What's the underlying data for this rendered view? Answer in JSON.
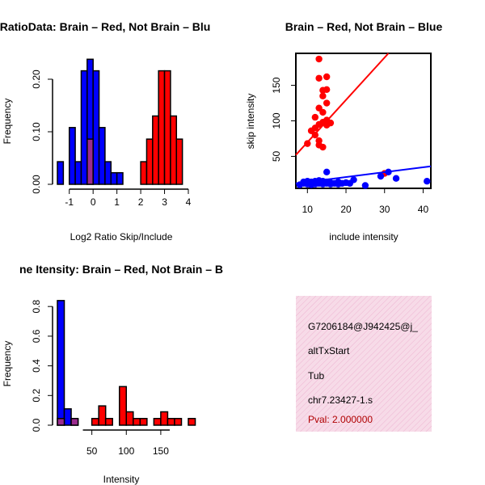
{
  "colors": {
    "brain": "#ff0000",
    "not_brain": "#0000ff",
    "overlap": "#9b2c8e",
    "panel_bg": "#f7dbe8",
    "pval": "#b00000",
    "axis": "#000000"
  },
  "chart_data": [
    {
      "type": "bar",
      "title": "RatioData: Brain – Red, Not Brain – Blu",
      "xlabel": "Log2 Ratio Skip/Include",
      "ylabel": "Frequency",
      "xlim": [
        -1.5,
        4
      ],
      "ylim": [
        0,
        0.24
      ],
      "xticks": [
        "-1",
        "0",
        "1",
        "2",
        "3",
        "4"
      ],
      "yticks": [
        "0.00",
        "0.10",
        "0.20"
      ],
      "bin_width": 0.25,
      "series": [
        {
          "name": "Not Brain",
          "color": "#0000ff",
          "bins": [
            {
              "start": -1.5,
              "value": 0.043
            },
            {
              "start": -1.25,
              "value": 0
            },
            {
              "start": -1.0,
              "value": 0.108
            },
            {
              "start": -0.75,
              "value": 0.043
            },
            {
              "start": -0.5,
              "value": 0.216
            },
            {
              "start": -0.25,
              "value": 0.238
            },
            {
              "start": 0.0,
              "value": 0.216
            },
            {
              "start": 0.25,
              "value": 0.108
            },
            {
              "start": 0.5,
              "value": 0.043
            },
            {
              "start": 0.75,
              "value": 0.022
            },
            {
              "start": 1.0,
              "value": 0.022
            }
          ]
        },
        {
          "name": "Brain",
          "color": "#ff0000",
          "bins": [
            {
              "start": -0.25,
              "value": 0.086
            },
            {
              "start": 2.0,
              "value": 0.043
            },
            {
              "start": 2.25,
              "value": 0.086
            },
            {
              "start": 2.5,
              "value": 0.13
            },
            {
              "start": 2.75,
              "value": 0.216
            },
            {
              "start": 3.0,
              "value": 0.216
            },
            {
              "start": 3.25,
              "value": 0.13
            },
            {
              "start": 3.5,
              "value": 0.086
            }
          ]
        }
      ]
    },
    {
      "type": "scatter",
      "title": "Brain – Red, Not Brain – Blue",
      "xlabel": "include intensity",
      "ylabel": "skip intensity",
      "xlim": [
        7,
        42
      ],
      "ylim": [
        5,
        195
      ],
      "xticks": [
        "10",
        "20",
        "30",
        "40"
      ],
      "yticks": [
        "50",
        "100",
        "150"
      ],
      "series": [
        {
          "name": "Brain",
          "color": "#ff0000",
          "points": [
            [
              13,
              187
            ],
            [
              15,
              162
            ],
            [
              13,
              160
            ],
            [
              15,
              144
            ],
            [
              14,
              143
            ],
            [
              14,
              135
            ],
            [
              15,
              125
            ],
            [
              13,
              118
            ],
            [
              14,
              112
            ],
            [
              12,
              105
            ],
            [
              15,
              101
            ],
            [
              14,
              98
            ],
            [
              16,
              97
            ],
            [
              13,
              95
            ],
            [
              12,
              90
            ],
            [
              11,
              86
            ],
            [
              12,
              80
            ],
            [
              13,
              72
            ],
            [
              13,
              66
            ],
            [
              10,
              68
            ],
            [
              14,
              63
            ],
            [
              15,
              94
            ],
            [
              30,
              26
            ]
          ],
          "fit": {
            "x1": 7,
            "y1": 52,
            "x2": 31,
            "y2": 195
          }
        },
        {
          "name": "Not Brain",
          "color": "#0000ff",
          "points": [
            [
              8,
              10
            ],
            [
              9,
              12
            ],
            [
              9,
              14
            ],
            [
              10,
              11
            ],
            [
              10,
              13
            ],
            [
              10,
              15
            ],
            [
              11,
              12
            ],
            [
              11,
              14
            ],
            [
              11,
              10
            ],
            [
              12,
              13
            ],
            [
              12,
              15
            ],
            [
              12,
              11
            ],
            [
              13,
              12
            ],
            [
              13,
              14
            ],
            [
              13,
              16
            ],
            [
              14,
              11
            ],
            [
              14,
              13
            ],
            [
              14,
              15
            ],
            [
              15,
              12
            ],
            [
              15,
              14
            ],
            [
              15,
              28
            ],
            [
              16,
              11
            ],
            [
              16,
              13
            ],
            [
              17,
              12
            ],
            [
              18,
              14
            ],
            [
              18,
              11
            ],
            [
              19,
              12
            ],
            [
              20,
              13
            ],
            [
              21,
              12
            ],
            [
              22,
              17
            ],
            [
              25,
              9
            ],
            [
              29,
              22
            ],
            [
              31,
              28
            ],
            [
              33,
              19
            ],
            [
              41,
              15
            ]
          ],
          "fit": {
            "x1": 7,
            "y1": 12,
            "x2": 42,
            "y2": 36
          }
        }
      ]
    },
    {
      "type": "bar",
      "title": "ne Itensity: Brain – Red, Not Brain – B",
      "xlabel": "Intensity",
      "ylabel": "Frequency",
      "xlim": [
        0,
        190
      ],
      "ylim": [
        0,
        0.85
      ],
      "xticks": [
        "50",
        "100",
        "150"
      ],
      "yticks": [
        "0.0",
        "0.2",
        "0.4",
        "0.6",
        "0.8"
      ],
      "bin_width": 10,
      "series": [
        {
          "name": "Not Brain",
          "color": "#0000ff",
          "bins": [
            {
              "start": 0,
              "value": 0.84
            },
            {
              "start": 10,
              "value": 0.11
            },
            {
              "start": 20,
              "value": 0.04
            }
          ]
        },
        {
          "name": "Brain",
          "color": "#ff0000",
          "bins": [
            {
              "start": 0,
              "value": 0.045
            },
            {
              "start": 20,
              "value": 0.045
            },
            {
              "start": 50,
              "value": 0.045
            },
            {
              "start": 60,
              "value": 0.13
            },
            {
              "start": 70,
              "value": 0.045
            },
            {
              "start": 90,
              "value": 0.26
            },
            {
              "start": 100,
              "value": 0.09
            },
            {
              "start": 110,
              "value": 0.045
            },
            {
              "start": 120,
              "value": 0.045
            },
            {
              "start": 140,
              "value": 0.045
            },
            {
              "start": 150,
              "value": 0.09
            },
            {
              "start": 160,
              "value": 0.045
            },
            {
              "start": 170,
              "value": 0.045
            },
            {
              "start": 190,
              "value": 0.045
            }
          ]
        }
      ]
    }
  ],
  "info_panel": {
    "line1": "G7206184@J942425@j_",
    "line2": "altTxStart",
    "line3": "Tub",
    "line4": "chr7.23427-1.s",
    "pval": "Pval: 2.000000"
  }
}
